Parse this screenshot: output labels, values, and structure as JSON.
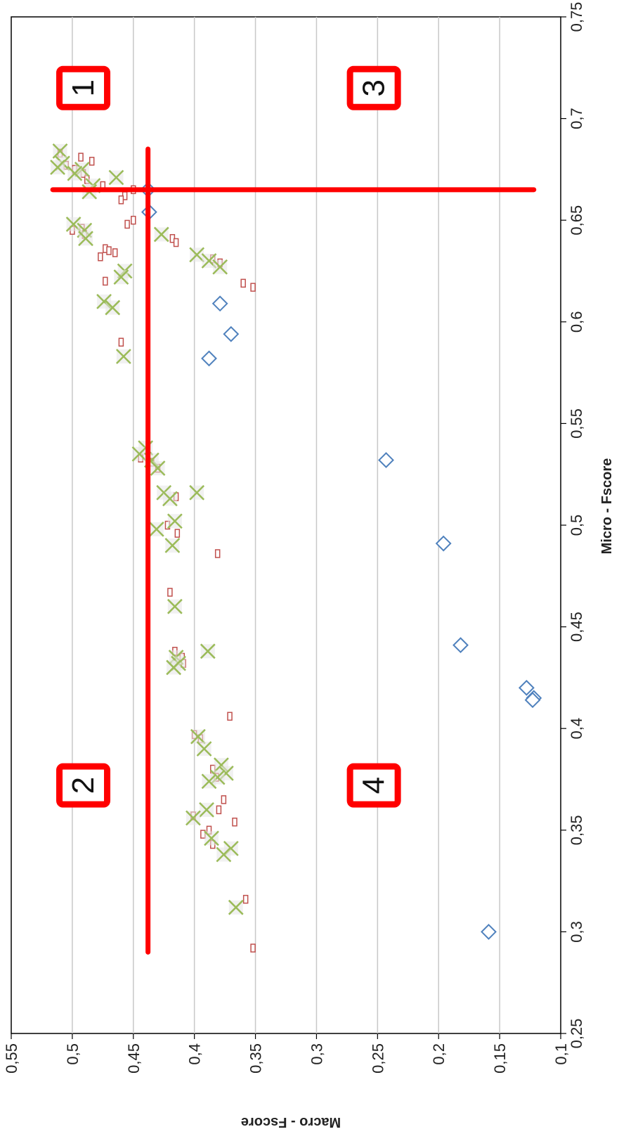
{
  "chart_data": {
    "type": "scatter",
    "orientation": "rotated-90-clockwise",
    "xlabel": "Micro - Fscore",
    "ylabel": "Macro - Fscore",
    "xlim": [
      0.25,
      0.75
    ],
    "ylim": [
      0.1,
      0.55
    ],
    "x_ticks": [
      "0,25",
      "0,3",
      "0,35",
      "0,4",
      "0,45",
      "0,5",
      "0,55",
      "0,6",
      "0,65",
      "0,7",
      "0,75"
    ],
    "y_ticks": [
      "0,1",
      "0,15",
      "0,2",
      "0,25",
      "0,3",
      "0,35",
      "0,4",
      "0,45",
      "0,5",
      "0,55"
    ],
    "grid": true,
    "colors": {
      "diamond": "#4f81bd",
      "square": "#c0504d",
      "cross": "#9bbb59",
      "reference": "#ff0000",
      "grid": "#c8c8c8"
    },
    "reference_lines": [
      {
        "axis": "x",
        "value": 0.665,
        "from": 0.122,
        "to": 0.516
      },
      {
        "axis": "y",
        "value": 0.438,
        "from": 0.29,
        "to": 0.685
      }
    ],
    "quadrant_labels": [
      {
        "text": "1",
        "x": 0.715,
        "y": 0.491
      },
      {
        "text": "3",
        "x": 0.715,
        "y": 0.253
      },
      {
        "text": "2",
        "x": 0.372,
        "y": 0.491
      },
      {
        "text": "4",
        "x": 0.372,
        "y": 0.253
      }
    ],
    "series": [
      {
        "marker": "diamond",
        "points": [
          [
            0.665,
            0.438
          ],
          [
            0.654,
            0.437
          ],
          [
            0.609,
            0.379
          ],
          [
            0.594,
            0.37
          ],
          [
            0.582,
            0.388
          ],
          [
            0.532,
            0.243
          ],
          [
            0.491,
            0.196
          ],
          [
            0.441,
            0.182
          ],
          [
            0.42,
            0.128
          ],
          [
            0.415,
            0.122
          ],
          [
            0.414,
            0.123
          ],
          [
            0.3,
            0.159
          ]
        ]
      },
      {
        "marker": "square",
        "points": [
          [
            0.683,
            0.51
          ],
          [
            0.681,
            0.493
          ],
          [
            0.679,
            0.484
          ],
          [
            0.677,
            0.505
          ],
          [
            0.675,
            0.498
          ],
          [
            0.673,
            0.491
          ],
          [
            0.67,
            0.488
          ],
          [
            0.667,
            0.475
          ],
          [
            0.665,
            0.45
          ],
          [
            0.662,
            0.457
          ],
          [
            0.66,
            0.46
          ],
          [
            0.65,
            0.45
          ],
          [
            0.648,
            0.455
          ],
          [
            0.646,
            0.492
          ],
          [
            0.645,
            0.5
          ],
          [
            0.643,
            0.49
          ],
          [
            0.641,
            0.418
          ],
          [
            0.639,
            0.415
          ],
          [
            0.636,
            0.473
          ],
          [
            0.635,
            0.47
          ],
          [
            0.634,
            0.465
          ],
          [
            0.632,
            0.477
          ],
          [
            0.631,
            0.385
          ],
          [
            0.629,
            0.379
          ],
          [
            0.62,
            0.473
          ],
          [
            0.619,
            0.36
          ],
          [
            0.617,
            0.352
          ],
          [
            0.59,
            0.46
          ],
          [
            0.533,
            0.444
          ],
          [
            0.531,
            0.435
          ],
          [
            0.528,
            0.43
          ],
          [
            0.514,
            0.415
          ],
          [
            0.5,
            0.422
          ],
          [
            0.496,
            0.414
          ],
          [
            0.486,
            0.381
          ],
          [
            0.467,
            0.42
          ],
          [
            0.438,
            0.416
          ],
          [
            0.435,
            0.41
          ],
          [
            0.432,
            0.409
          ],
          [
            0.406,
            0.371
          ],
          [
            0.397,
            0.4
          ],
          [
            0.395,
            0.395
          ],
          [
            0.38,
            0.385
          ],
          [
            0.376,
            0.382
          ],
          [
            0.365,
            0.376
          ],
          [
            0.36,
            0.38
          ],
          [
            0.357,
            0.401
          ],
          [
            0.354,
            0.367
          ],
          [
            0.35,
            0.388
          ],
          [
            0.348,
            0.393
          ],
          [
            0.343,
            0.385
          ],
          [
            0.316,
            0.358
          ],
          [
            0.292,
            0.352
          ]
        ]
      },
      {
        "marker": "cross",
        "points": [
          [
            0.684,
            0.51
          ],
          [
            0.678,
            0.508
          ],
          [
            0.676,
            0.512
          ],
          [
            0.675,
            0.492
          ],
          [
            0.673,
            0.498
          ],
          [
            0.671,
            0.464
          ],
          [
            0.667,
            0.483
          ],
          [
            0.664,
            0.486
          ],
          [
            0.648,
            0.499
          ],
          [
            0.645,
            0.49
          ],
          [
            0.643,
            0.427
          ],
          [
            0.641,
            0.489
          ],
          [
            0.633,
            0.398
          ],
          [
            0.63,
            0.388
          ],
          [
            0.627,
            0.379
          ],
          [
            0.625,
            0.457
          ],
          [
            0.622,
            0.46
          ],
          [
            0.61,
            0.474
          ],
          [
            0.607,
            0.467
          ],
          [
            0.583,
            0.458
          ],
          [
            0.538,
            0.44
          ],
          [
            0.535,
            0.445
          ],
          [
            0.532,
            0.435
          ],
          [
            0.528,
            0.43
          ],
          [
            0.516,
            0.425
          ],
          [
            0.513,
            0.42
          ],
          [
            0.516,
            0.398
          ],
          [
            0.502,
            0.416
          ],
          [
            0.498,
            0.431
          ],
          [
            0.49,
            0.418
          ],
          [
            0.46,
            0.416
          ],
          [
            0.438,
            0.389
          ],
          [
            0.435,
            0.415
          ],
          [
            0.432,
            0.413
          ],
          [
            0.43,
            0.417
          ],
          [
            0.396,
            0.397
          ],
          [
            0.39,
            0.392
          ],
          [
            0.382,
            0.378
          ],
          [
            0.378,
            0.374
          ],
          [
            0.376,
            0.381
          ],
          [
            0.374,
            0.388
          ],
          [
            0.36,
            0.39
          ],
          [
            0.356,
            0.401
          ],
          [
            0.346,
            0.386
          ],
          [
            0.341,
            0.37
          ],
          [
            0.338,
            0.376
          ],
          [
            0.312,
            0.366
          ]
        ]
      }
    ]
  }
}
